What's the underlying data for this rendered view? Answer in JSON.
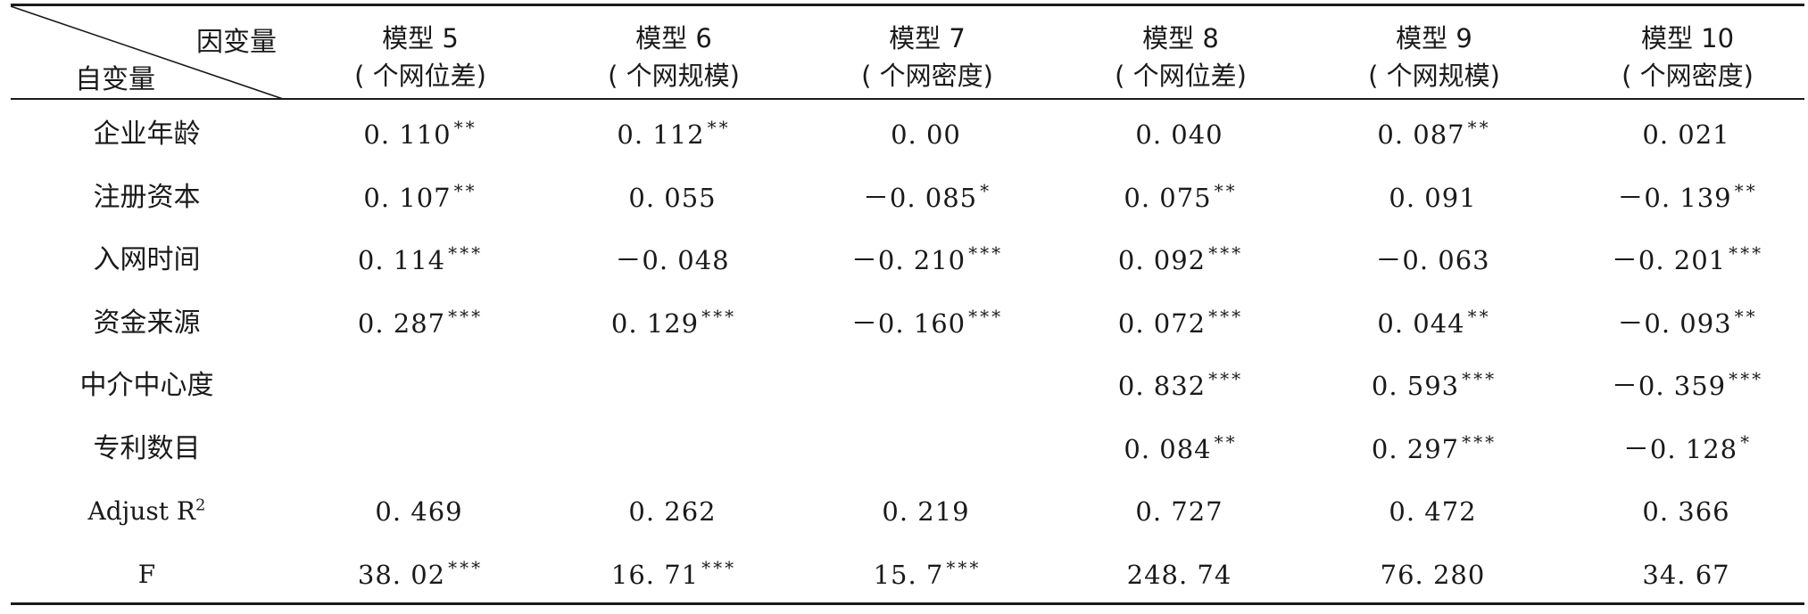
{
  "corner": {
    "dependent_label": "因变量",
    "independent_label": "自变量"
  },
  "columns": [
    {
      "model": "模型 5",
      "sub": "( 个网位差)"
    },
    {
      "model": "模型 6",
      "sub": "( 个网规模)"
    },
    {
      "model": "模型 7",
      "sub": "( 个网密度)"
    },
    {
      "model": "模型 8",
      "sub": "( 个网位差)"
    },
    {
      "model": "模型 9",
      "sub": "( 个网规模)"
    },
    {
      "model": "模型 10",
      "sub": "( 个网密度)"
    }
  ],
  "rows": [
    {
      "label": "企业年龄",
      "cells": [
        {
          "v": "0. 110",
          "s": "**"
        },
        {
          "v": "0. 112",
          "s": "**"
        },
        {
          "v": "0. 00",
          "s": ""
        },
        {
          "v": "0. 040",
          "s": ""
        },
        {
          "v": "0. 087",
          "s": "**"
        },
        {
          "v": "0. 021",
          "s": ""
        }
      ]
    },
    {
      "label": "注册资本",
      "cells": [
        {
          "v": "0. 107",
          "s": "**"
        },
        {
          "v": "0. 055",
          "s": ""
        },
        {
          "v": "－0. 085",
          "s": "*"
        },
        {
          "v": "0. 075",
          "s": "**"
        },
        {
          "v": "0. 091",
          "s": ""
        },
        {
          "v": "－0. 139",
          "s": "**"
        }
      ]
    },
    {
      "label": "入网时间",
      "cells": [
        {
          "v": "0. 114",
          "s": "***"
        },
        {
          "v": "－0. 048",
          "s": ""
        },
        {
          "v": "－0. 210",
          "s": "***"
        },
        {
          "v": "0. 092",
          "s": "***"
        },
        {
          "v": "－0. 063",
          "s": ""
        },
        {
          "v": "－0. 201",
          "s": "***"
        }
      ]
    },
    {
      "label": "资金来源",
      "cells": [
        {
          "v": "0. 287",
          "s": "***"
        },
        {
          "v": "0. 129",
          "s": "***"
        },
        {
          "v": "－0. 160",
          "s": "***"
        },
        {
          "v": "0. 072",
          "s": "***"
        },
        {
          "v": "0. 044",
          "s": "**"
        },
        {
          "v": "－0. 093",
          "s": "**"
        }
      ]
    },
    {
      "label": "中介中心度",
      "cells": [
        {
          "v": "",
          "s": ""
        },
        {
          "v": "",
          "s": ""
        },
        {
          "v": "",
          "s": ""
        },
        {
          "v": "0. 832",
          "s": "***"
        },
        {
          "v": "0. 593",
          "s": "***"
        },
        {
          "v": "－0. 359",
          "s": "***"
        }
      ]
    },
    {
      "label": "专利数目",
      "cells": [
        {
          "v": "",
          "s": ""
        },
        {
          "v": "",
          "s": ""
        },
        {
          "v": "",
          "s": ""
        },
        {
          "v": "0. 084",
          "s": "**"
        },
        {
          "v": "0. 297",
          "s": "***"
        },
        {
          "v": "－0. 128",
          "s": "*"
        }
      ]
    },
    {
      "label": "Adjust R",
      "label_sup": "2",
      "cells": [
        {
          "v": "0. 469",
          "s": ""
        },
        {
          "v": "0. 262",
          "s": ""
        },
        {
          "v": "0. 219",
          "s": ""
        },
        {
          "v": "0. 727",
          "s": ""
        },
        {
          "v": "0. 472",
          "s": ""
        },
        {
          "v": "0. 366",
          "s": ""
        }
      ]
    },
    {
      "label": "F",
      "cells": [
        {
          "v": "38. 02",
          "s": "***"
        },
        {
          "v": "16. 71",
          "s": "***"
        },
        {
          "v": "15. 7",
          "s": "***"
        },
        {
          "v": "248. 74",
          "s": ""
        },
        {
          "v": "76. 280",
          "s": ""
        },
        {
          "v": "34. 67",
          "s": ""
        }
      ]
    }
  ]
}
